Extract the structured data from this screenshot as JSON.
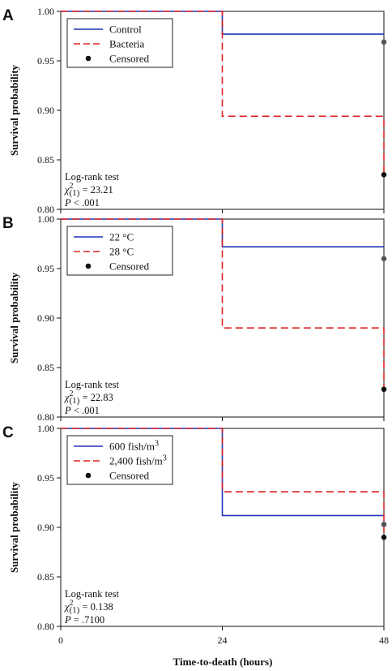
{
  "figure": {
    "xlabel": "Time-to-death (hours)",
    "x_ticks": [
      "0",
      "24",
      "48"
    ]
  },
  "chart_data": [
    {
      "panel": "A",
      "type": "line",
      "step": true,
      "xlabel": "",
      "ylabel": "Survival probability",
      "xlim": [
        0,
        48
      ],
      "ylim": [
        0.8,
        1.0
      ],
      "y_ticks": [
        "0.80",
        "0.85",
        "0.90",
        "0.95",
        "1.00"
      ],
      "grid": false,
      "legend_position": "top-left",
      "series": [
        {
          "name": "Control",
          "color": "#2233bb",
          "dash": "solid",
          "x": [
            0,
            24,
            24,
            48
          ],
          "y": [
            1.0,
            1.0,
            0.977,
            0.977
          ],
          "censored": [
            [
              48,
              0.969
            ]
          ]
        },
        {
          "name": "Bacteria",
          "color": "#dd2222",
          "dash": "dashed",
          "x": [
            0,
            24,
            24,
            48,
            48
          ],
          "y": [
            1.0,
            1.0,
            0.894,
            0.894,
            0.835
          ],
          "censored": [
            [
              48,
              0.835
            ]
          ]
        }
      ],
      "censored_label": "Censored",
      "stats": {
        "line1": "Log-rank test",
        "chi": "χ",
        "sup": "2",
        "sub": "(1)",
        "chi_value": " = 23.21",
        "p_letter": "P",
        "p_value": " < .001"
      }
    },
    {
      "panel": "B",
      "type": "line",
      "step": true,
      "xlabel": "",
      "ylabel": "Survival probability",
      "xlim": [
        0,
        48
      ],
      "ylim": [
        0.8,
        1.0
      ],
      "y_ticks": [
        "0.80",
        "0.85",
        "0.90",
        "0.95",
        "1.00"
      ],
      "grid": false,
      "legend_position": "top-left",
      "series": [
        {
          "name": "22 °C",
          "color": "#2233bb",
          "dash": "solid",
          "x": [
            0,
            24,
            24,
            48
          ],
          "y": [
            1.0,
            1.0,
            0.972,
            0.972
          ],
          "censored": [
            [
              48,
              0.96
            ]
          ]
        },
        {
          "name": "28 °C",
          "color": "#dd2222",
          "dash": "dashed",
          "x": [
            0,
            24,
            24,
            48,
            48
          ],
          "y": [
            1.0,
            1.0,
            0.89,
            0.89,
            0.828
          ],
          "censored": [
            [
              48,
              0.828
            ]
          ]
        }
      ],
      "censored_label": "Censored",
      "stats": {
        "line1": "Log-rank test",
        "chi": "χ",
        "sup": "2",
        "sub": "(1)",
        "chi_value": " = 22.83",
        "p_letter": "P",
        "p_value": " < .001"
      }
    },
    {
      "panel": "C",
      "type": "line",
      "step": true,
      "xlabel": "Time-to-death (hours)",
      "ylabel": "Survival probability",
      "xlim": [
        0,
        48
      ],
      "ylim": [
        0.8,
        1.0
      ],
      "x_ticks": [
        "0",
        "24",
        "48"
      ],
      "y_ticks": [
        "0.80",
        "0.85",
        "0.90",
        "0.95",
        "1.00"
      ],
      "grid": false,
      "legend_position": "top-left",
      "series": [
        {
          "name": "600 fish/m",
          "name_sup": "3",
          "color": "#2233bb",
          "dash": "solid",
          "x": [
            0,
            24,
            24,
            48
          ],
          "y": [
            1.0,
            1.0,
            0.912,
            0.912
          ],
          "censored": [
            [
              48,
              0.903
            ]
          ]
        },
        {
          "name": "2,400 fish/m",
          "name_sup": "3",
          "color": "#dd2222",
          "dash": "dashed",
          "x": [
            0,
            24,
            24,
            48,
            48
          ],
          "y": [
            1.0,
            1.0,
            0.936,
            0.936,
            0.89
          ],
          "censored": [
            [
              48,
              0.89
            ]
          ]
        }
      ],
      "censored_label": "Censored",
      "stats": {
        "line1": "Log-rank test",
        "chi": "χ",
        "sup": "2",
        "sub": "(1)",
        "chi_value": " = 0.138",
        "p_letter": "P",
        "p_value": " = .7100"
      }
    }
  ]
}
